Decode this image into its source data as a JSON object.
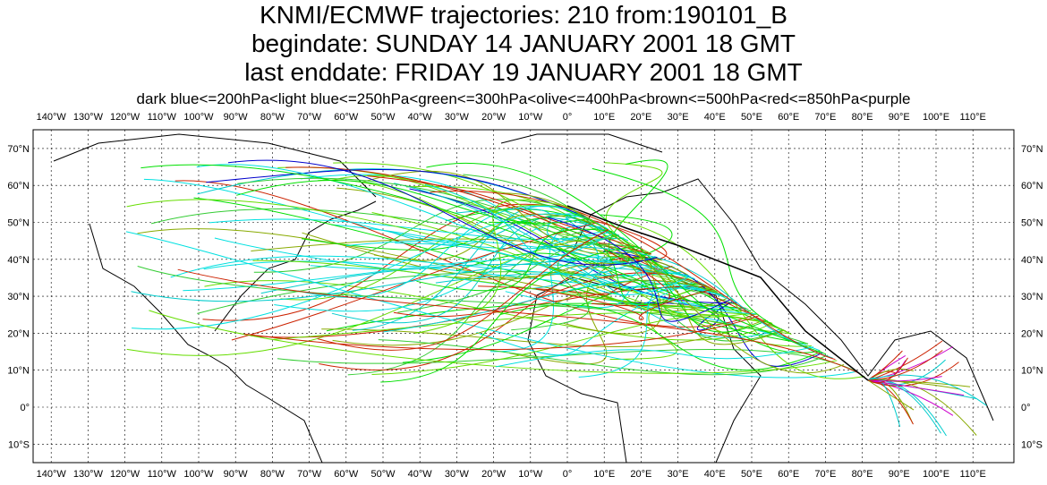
{
  "header": {
    "title": "KNMI/ECMWF trajectories:  210 from:190101_B",
    "begindate": "begindate:  SUNDAY    14 JANUARY   2001 18 GMT",
    "enddate": "last enddate:  FRIDAY    19 JANUARY   2001 18 GMT",
    "legend": "dark blue<=200hPa<light blue<=250hPa<green<=300hPa<olive<=400hPa<brown<=500hPa<red<=850hPa<purple"
  },
  "map": {
    "lon_ticks": [
      {
        "value": -140,
        "label": "140°W"
      },
      {
        "value": -130,
        "label": "130°W"
      },
      {
        "value": -120,
        "label": "120°W"
      },
      {
        "value": -110,
        "label": "110°W"
      },
      {
        "value": -100,
        "label": "100°W"
      },
      {
        "value": -90,
        "label": "90°W"
      },
      {
        "value": -80,
        "label": "80°W"
      },
      {
        "value": -70,
        "label": "70°W"
      },
      {
        "value": -60,
        "label": "60°W"
      },
      {
        "value": -50,
        "label": "50°W"
      },
      {
        "value": -40,
        "label": "40°W"
      },
      {
        "value": -30,
        "label": "30°W"
      },
      {
        "value": -20,
        "label": "20°W"
      },
      {
        "value": -10,
        "label": "10°W"
      },
      {
        "value": 0,
        "label": "0°"
      },
      {
        "value": 10,
        "label": "10°E"
      },
      {
        "value": 20,
        "label": "20°E"
      },
      {
        "value": 30,
        "label": "30°E"
      },
      {
        "value": 40,
        "label": "40°E"
      },
      {
        "value": 50,
        "label": "50°E"
      },
      {
        "value": 60,
        "label": "60°E"
      },
      {
        "value": 70,
        "label": "70°E"
      },
      {
        "value": 80,
        "label": "80°E"
      },
      {
        "value": 90,
        "label": "90°E"
      },
      {
        "value": 100,
        "label": "100°E"
      },
      {
        "value": 110,
        "label": "110°E"
      }
    ],
    "lat_ticks": [
      {
        "value": 70,
        "label": "70°N"
      },
      {
        "value": 60,
        "label": "60°N"
      },
      {
        "value": 50,
        "label": "50°N"
      },
      {
        "value": 40,
        "label": "40°N"
      },
      {
        "value": 30,
        "label": "30°N"
      },
      {
        "value": 20,
        "label": "20°N"
      },
      {
        "value": 10,
        "label": "10°N"
      },
      {
        "value": 0,
        "label": "0°"
      },
      {
        "value": -10,
        "label": "10°S"
      }
    ]
  }
}
